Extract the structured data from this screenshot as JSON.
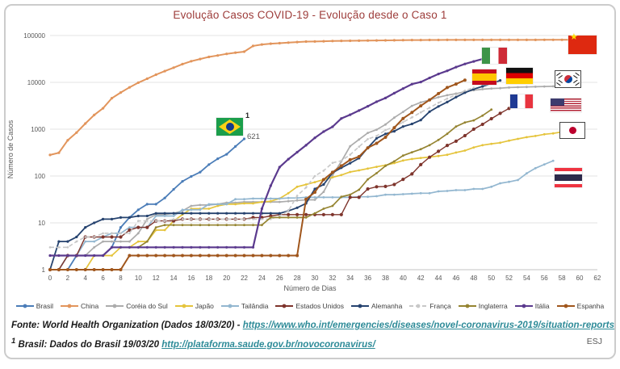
{
  "title": "Evolução Casos COVID-19 - Evolução desde o Caso 1",
  "footer": {
    "line1_prefix": "Fonte: World Health Organization (Dados 18/03/20) - ",
    "line1_link": "https://www.who.int/emergencies/diseases/novel-coronavirus-2019/situation-reports",
    "line2_sup": "1",
    "line2_prefix": " Brasil: Dados do Brasil 19/03/20 ",
    "line2_link": "http://plataforma.saude.gov.br/novocoronavirus/",
    "initials": "ESJ"
  },
  "annotations": {
    "brasil_footnote": "1",
    "brasil_last_value": "621"
  },
  "chart_data": {
    "type": "line",
    "title": "Evolução Casos COVID-19 - Evolução desde o Caso 1",
    "xlabel": "Número de Dias",
    "ylabel": "Número de Casos",
    "y_scale": "log",
    "ylim": [
      1,
      100000
    ],
    "xlim": [
      0,
      62
    ],
    "grid": "horizontal",
    "legend_position": "bottom",
    "y_ticks": [
      1,
      10,
      100,
      1000,
      10000,
      100000
    ],
    "x_ticks": [
      0,
      2,
      4,
      6,
      8,
      10,
      12,
      14,
      16,
      18,
      20,
      22,
      24,
      26,
      28,
      30,
      32,
      34,
      36,
      38,
      40,
      42,
      44,
      46,
      48,
      50,
      52,
      54,
      56,
      58,
      60,
      62
    ],
    "series": [
      {
        "id": "brasil",
        "name": "Brasil",
        "color": "#4b7db8",
        "width": 1.8,
        "marker_r": 1.6,
        "values": [
          1,
          1,
          1,
          2,
          2,
          2,
          2,
          3,
          8,
          13,
          19,
          25,
          25,
          34,
          52,
          77,
          98,
          121,
          176,
          234,
          291,
          428,
          621
        ]
      },
      {
        "id": "china",
        "name": "China",
        "color": "#e2955c",
        "width": 2,
        "marker_r": 1.6,
        "values": [
          282,
          314,
          581,
          846,
          1320,
          2014,
          2798,
          4593,
          6065,
          7818,
          9826,
          11953,
          14557,
          17391,
          20630,
          24554,
          28276,
          31481,
          34886,
          37558,
          40554,
          43103,
          45171,
          59895,
          64437,
          66887,
          68500,
          70548,
          72436,
          74185,
          74576,
          75465,
          76288,
          76936,
          77150,
          77658,
          78064,
          78497,
          78824,
          79251,
          79824,
          80026,
          80151,
          80270,
          80409,
          80552,
          80651,
          80695,
          80735,
          80754,
          80778,
          80793,
          80813,
          80824,
          80844,
          80860,
          80881,
          80894,
          80928,
          80967,
          81033
        ]
      },
      {
        "id": "coreia-do-sul",
        "name": "Coréia do Sul",
        "color": "#acacac",
        "width": 1.7,
        "marker_r": 1.4,
        "values": [
          1,
          1,
          2,
          2,
          2,
          3,
          4,
          4,
          4,
          4,
          6,
          12,
          15,
          15,
          16,
          18,
          23,
          24,
          24,
          25,
          27,
          27,
          28,
          28,
          28,
          28,
          28,
          29,
          30,
          31,
          31,
          46,
          104,
          204,
          433,
          602,
          833,
          977,
          1261,
          1766,
          2337,
          3150,
          3736,
          4212,
          4812,
          5328,
          5766,
          6284,
          6767,
          7134,
          7382,
          7513,
          7755,
          7869,
          7979,
          8086,
          8162,
          8236,
          8320,
          8413,
          8565
        ]
      },
      {
        "id": "japao",
        "name": "Japão",
        "color": "#e5c43c",
        "width": 1.7,
        "marker_r": 1.4,
        "values": [
          1,
          1,
          1,
          1,
          1,
          2,
          2,
          2,
          3,
          3,
          4,
          4,
          7,
          7,
          11,
          15,
          20,
          20,
          20,
          23,
          25,
          25,
          26,
          26,
          28,
          29,
          33,
          43,
          59,
          66,
          74,
          84,
          94,
          105,
          122,
          132,
          144,
          157,
          170,
          189,
          214,
          231,
          243,
          254,
          268,
          284,
          317,
          349,
          408,
          455,
          488,
          514,
          568,
          620,
          675,
          716,
          780,
          814,
          873,
          889
        ]
      },
      {
        "id": "tailandia",
        "name": "Tailândia",
        "color": "#93b7d0",
        "width": 1.7,
        "marker_r": 1.4,
        "values": [
          1,
          1,
          2,
          2,
          4,
          4,
          5,
          6,
          6,
          8,
          8,
          8,
          14,
          14,
          14,
          19,
          19,
          19,
          25,
          25,
          25,
          32,
          32,
          33,
          33,
          33,
          33,
          34,
          34,
          35,
          35,
          35,
          35,
          35,
          35,
          36,
          36,
          37,
          40,
          40,
          41,
          42,
          43,
          43,
          47,
          48,
          50,
          50,
          53,
          53,
          59,
          70,
          75,
          82,
          114,
          147,
          177,
          212
        ]
      },
      {
        "id": "estados-unidos",
        "name": "Estados Unidos",
        "color": "#7e342c",
        "width": 1.4,
        "marker_r": 2.1,
        "values": [
          1,
          1,
          2,
          2,
          5,
          5,
          5,
          5,
          5,
          7,
          8,
          8,
          11,
          11,
          11,
          12,
          12,
          12,
          12,
          12,
          12,
          12,
          12,
          13,
          13,
          14,
          15,
          15,
          15,
          15,
          15,
          15,
          15,
          15,
          35,
          35,
          53,
          59,
          60,
          66,
          85,
          111,
          175,
          252,
          337,
          450,
          554,
          728,
          1000,
          1267,
          1678,
          2174,
          2774,
          3536,
          4661
        ]
      },
      {
        "id": "alemanha",
        "name": "Alemanha",
        "color": "#26436f",
        "width": 1.8,
        "marker_r": 1.6,
        "values": [
          1,
          4,
          4,
          5,
          8,
          10,
          12,
          12,
          13,
          13,
          14,
          14,
          16,
          16,
          16,
          16,
          16,
          16,
          16,
          16,
          16,
          16,
          16,
          16,
          16,
          16,
          16,
          18,
          21,
          26,
          53,
          66,
          117,
          150,
          188,
          240,
          400,
          639,
          795,
          902,
          1139,
          1296,
          1567,
          2369,
          3062,
          3795,
          4838,
          6012,
          7156,
          8198,
          9360,
          10999
        ]
      },
      {
        "id": "franca",
        "name": "França",
        "color": "#c8c8c8",
        "width": 1.6,
        "marker_r": 1.3,
        "dash": "5 3",
        "values": [
          3,
          3,
          3,
          4,
          5,
          5,
          6,
          6,
          6,
          6,
          11,
          11,
          11,
          11,
          12,
          12,
          12,
          12,
          12,
          12,
          12,
          12,
          12,
          12,
          12,
          12,
          14,
          18,
          38,
          57,
          100,
          130,
          191,
          212,
          285,
          423,
          613,
          716,
          959,
          1126,
          1412,
          1784,
          2281,
          2876,
          3661,
          4499,
          5423,
          6633,
          7730
        ]
      },
      {
        "id": "inglaterra",
        "name": "Inglaterra",
        "color": "#958431",
        "width": 1.7,
        "marker_r": 1.4,
        "values": [
          2,
          2,
          2,
          2,
          2,
          2,
          2,
          3,
          3,
          3,
          3,
          4,
          8,
          9,
          9,
          9,
          9,
          9,
          9,
          9,
          9,
          9,
          9,
          9,
          9,
          13,
          13,
          13,
          13,
          13,
          16,
          20,
          23,
          36,
          40,
          51,
          85,
          115,
          164,
          206,
          273,
          321,
          373,
          456,
          590,
          798,
          1140,
          1391,
          1543,
          1950,
          2626
        ]
      },
      {
        "id": "italia",
        "name": "Itália",
        "color": "#5b3a8e",
        "width": 2.2,
        "marker_r": 1.6,
        "values": [
          2,
          2,
          2,
          2,
          2,
          2,
          2,
          3,
          3,
          3,
          3,
          3,
          3,
          3,
          3,
          3,
          3,
          3,
          3,
          3,
          3,
          3,
          3,
          3,
          20,
          62,
          155,
          229,
          322,
          453,
          655,
          888,
          1128,
          1694,
          2036,
          2502,
          3089,
          3858,
          4636,
          5883,
          7375,
          9172,
          10149,
          12462,
          15113,
          17660,
          21157,
          24747,
          27980,
          31506
        ]
      },
      {
        "id": "espanha",
        "name": "Espanha",
        "color": "#a0561c",
        "width": 2,
        "marker_r": 2,
        "values": [
          1,
          1,
          1,
          1,
          1,
          1,
          1,
          1,
          1,
          2,
          2,
          2,
          2,
          2,
          2,
          2,
          2,
          2,
          2,
          2,
          2,
          2,
          2,
          2,
          2,
          2,
          2,
          2,
          2,
          32,
          45,
          84,
          120,
          165,
          222,
          259,
          400,
          500,
          673,
          1073,
          1695,
          2277,
          3146,
          4231,
          5753,
          7753,
          9191,
          11178
        ]
      }
    ]
  }
}
